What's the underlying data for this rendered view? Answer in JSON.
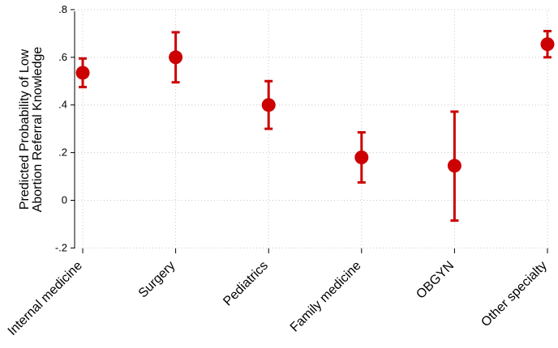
{
  "chart_data": {
    "type": "scatter",
    "title": "",
    "xlabel": "",
    "ylabel_lines": [
      "Predicted Probability of Low",
      "Abortion Referral Knowledge"
    ],
    "ylim": [
      -0.2,
      0.8
    ],
    "yticks": [
      {
        "value": -0.2,
        "label": "-.2"
      },
      {
        "value": 0,
        "label": "0"
      },
      {
        "value": 0.2,
        "label": ".2"
      },
      {
        "value": 0.4,
        "label": ".4"
      },
      {
        "value": 0.6,
        "label": ".6"
      },
      {
        "value": 0.8,
        "label": ".8"
      }
    ],
    "categories": [
      "Internal medicine",
      "Surgery",
      "Pediatrics",
      "Family medicine",
      "OBGYN",
      "Other specialty"
    ],
    "series": [
      {
        "values": [
          0.535,
          0.6,
          0.4,
          0.18,
          0.145,
          0.655
        ],
        "ci_low": [
          0.475,
          0.495,
          0.3,
          0.075,
          -0.085,
          0.6
        ],
        "ci_high": [
          0.595,
          0.705,
          0.5,
          0.285,
          0.372,
          0.71
        ],
        "color": "#cc0000"
      }
    ],
    "grid": true,
    "grid_style": "dotted",
    "legend": "none"
  }
}
